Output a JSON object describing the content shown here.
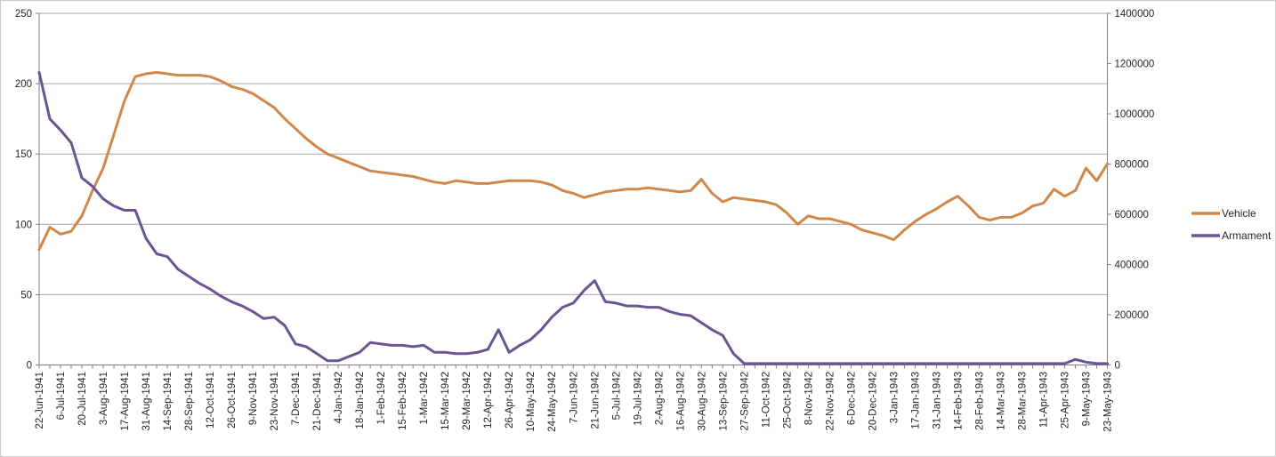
{
  "chart_data": {
    "type": "line",
    "title": "",
    "xlabel": "",
    "ylabel_left": "",
    "ylabel_right": "",
    "grid": "horizontal",
    "legend_position": "right",
    "x": [
      "22-Jun-1941",
      "29-Jun-1941",
      "6-Jul-1941",
      "13-Jul-1941",
      "20-Jul-1941",
      "27-Jul-1941",
      "3-Aug-1941",
      "10-Aug-1941",
      "17-Aug-1941",
      "24-Aug-1941",
      "31-Aug-1941",
      "7-Sep-1941",
      "14-Sep-1941",
      "21-Sep-1941",
      "28-Sep-1941",
      "5-Oct-1941",
      "12-Oct-1941",
      "19-Oct-1941",
      "26-Oct-1941",
      "2-Nov-1941",
      "9-Nov-1941",
      "16-Nov-1941",
      "23-Nov-1941",
      "30-Nov-1941",
      "7-Dec-1941",
      "14-Dec-1941",
      "21-Dec-1941",
      "28-Dec-1941",
      "4-Jan-1942",
      "11-Jan-1942",
      "18-Jan-1942",
      "25-Jan-1942",
      "1-Feb-1942",
      "8-Feb-1942",
      "15-Feb-1942",
      "22-Feb-1942",
      "1-Mar-1942",
      "8-Mar-1942",
      "15-Mar-1942",
      "22-Mar-1942",
      "29-Mar-1942",
      "5-Apr-1942",
      "12-Apr-1942",
      "19-Apr-1942",
      "26-Apr-1942",
      "3-May-1942",
      "10-May-1942",
      "17-May-1942",
      "24-May-1942",
      "31-May-1942",
      "7-Jun-1942",
      "14-Jun-1942",
      "21-Jun-1942",
      "28-Jun-1942",
      "5-Jul-1942",
      "12-Jul-1942",
      "19-Jul-1942",
      "26-Jul-1942",
      "2-Aug-1942",
      "9-Aug-1942",
      "16-Aug-1942",
      "23-Aug-1942",
      "30-Aug-1942",
      "6-Sep-1942",
      "13-Sep-1942",
      "20-Sep-1942",
      "27-Sep-1942",
      "4-Oct-1942",
      "11-Oct-1942",
      "18-Oct-1942",
      "25-Oct-1942",
      "1-Nov-1942",
      "8-Nov-1942",
      "15-Nov-1942",
      "22-Nov-1942",
      "29-Nov-1942",
      "6-Dec-1942",
      "13-Dec-1942",
      "20-Dec-1942",
      "27-Dec-1942",
      "3-Jan-1943",
      "10-Jan-1943",
      "17-Jan-1943",
      "24-Jan-1943",
      "31-Jan-1943",
      "7-Feb-1943",
      "14-Feb-1943",
      "21-Feb-1943",
      "28-Feb-1943",
      "7-Mar-1943",
      "14-Mar-1943",
      "21-Mar-1943",
      "28-Mar-1943",
      "4-Apr-1943",
      "11-Apr-1943",
      "18-Apr-1943",
      "25-Apr-1943",
      "2-May-1943",
      "9-May-1943",
      "16-May-1943",
      "23-May-1943"
    ],
    "x_tick_labels": [
      "22-Jun-1941",
      "6-Jul-1941",
      "20-Jul-1941",
      "3-Aug-1941",
      "17-Aug-1941",
      "31-Aug-1941",
      "14-Sep-1941",
      "28-Sep-1941",
      "12-Oct-1941",
      "26-Oct-1941",
      "9-Nov-1941",
      "23-Nov-1941",
      "7-Dec-1941",
      "21-Dec-1941",
      "4-Jan-1942",
      "18-Jan-1942",
      "1-Feb-1942",
      "15-Feb-1942",
      "1-Mar-1942",
      "15-Mar-1942",
      "29-Mar-1942",
      "12-Apr-1942",
      "26-Apr-1942",
      "10-May-1942",
      "24-May-1942",
      "7-Jun-1942",
      "21-Jun-1942",
      "5-Jul-1942",
      "19-Jul-1942",
      "2-Aug-1942",
      "16-Aug-1942",
      "30-Aug-1942",
      "13-Sep-1942",
      "27-Sep-1942",
      "11-Oct-1942",
      "25-Oct-1942",
      "8-Nov-1942",
      "22-Nov-1942",
      "6-Dec-1942",
      "20-Dec-1942",
      "3-Jan-1943",
      "17-Jan-1943",
      "31-Jan-1943",
      "14-Feb-1943",
      "28-Feb-1943",
      "14-Mar-1943",
      "28-Mar-1943",
      "11-Apr-1943",
      "25-Apr-1943",
      "9-May-1943",
      "23-May-1943"
    ],
    "left_axis": {
      "min": 0,
      "max": 250,
      "step": 50,
      "tick_labels": [
        "0",
        "50",
        "100",
        "150",
        "200",
        "250"
      ]
    },
    "right_axis": {
      "min": 0,
      "max": 1400000,
      "step": 200000,
      "tick_labels": [
        "0",
        "200000",
        "400000",
        "600000",
        "800000",
        "1000000",
        "1200000",
        "1400000"
      ]
    },
    "series": [
      {
        "name": "Vehicle",
        "axis": "left",
        "color": "#d0884a",
        "values": [
          82,
          98,
          93,
          95,
          106,
          124,
          140,
          164,
          188,
          205,
          207,
          208,
          207,
          206,
          206,
          206,
          205,
          202,
          198,
          196,
          193,
          188,
          183,
          175,
          168,
          161,
          155,
          150,
          147,
          144,
          141,
          138,
          137,
          136,
          135,
          134,
          132,
          130,
          129,
          131,
          130,
          129,
          129,
          130,
          131,
          131,
          131,
          130,
          128,
          124,
          122,
          119,
          121,
          123,
          124,
          125,
          125,
          126,
          125,
          124,
          123,
          124,
          132,
          122,
          116,
          119,
          118,
          117,
          116,
          114,
          108,
          100,
          106,
          104,
          104,
          102,
          100,
          96,
          94,
          92,
          89,
          96,
          102,
          107,
          111,
          116,
          120,
          113,
          105,
          103,
          105,
          105,
          108,
          113,
          115,
          125,
          120,
          124,
          140,
          131,
          143
        ]
      },
      {
        "name": "Armament",
        "axis": "right",
        "color": "#6a5494",
        "values": [
          1164800,
          980000,
          935200,
          884800,
          744800,
          711200,
          660800,
          632800,
          616000,
          616000,
          504000,
          442400,
          431200,
          380800,
          352800,
          324800,
          302400,
          274400,
          252000,
          235200,
          212800,
          184800,
          190400,
          156800,
          84000,
          72800,
          44800,
          16800,
          16800,
          33600,
          50400,
          89600,
          84000,
          78400,
          78400,
          72800,
          78400,
          50400,
          50400,
          44800,
          44800,
          50400,
          61600,
          140000,
          50400,
          78400,
          100800,
          140000,
          190400,
          229600,
          246400,
          296800,
          336000,
          252000,
          246400,
          235200,
          235200,
          229600,
          229600,
          212800,
          201600,
          196000,
          168000,
          140000,
          117600,
          44800,
          5600,
          5600,
          5600,
          5600,
          5600,
          5600,
          5600,
          5600,
          5600,
          5600,
          5600,
          5600,
          5600,
          5600,
          5600,
          5600,
          5600,
          5600,
          5600,
          5600,
          5600,
          5600,
          5600,
          5600,
          5600,
          5600,
          5600,
          5600,
          5600,
          5600,
          5600,
          22400,
          11200,
          5600,
          5600
        ]
      }
    ]
  },
  "legend": {
    "vehicle_label": "Vehicle",
    "armament_label": "Armament"
  },
  "colors": {
    "vehicle_line": "#d0884a",
    "armament_line": "#6a5494",
    "gridline": "#a6a6a6",
    "axis_line": "#808080",
    "tick_text": "#262626",
    "chart_border": "#c9c9c9",
    "background": "#ffffff"
  }
}
